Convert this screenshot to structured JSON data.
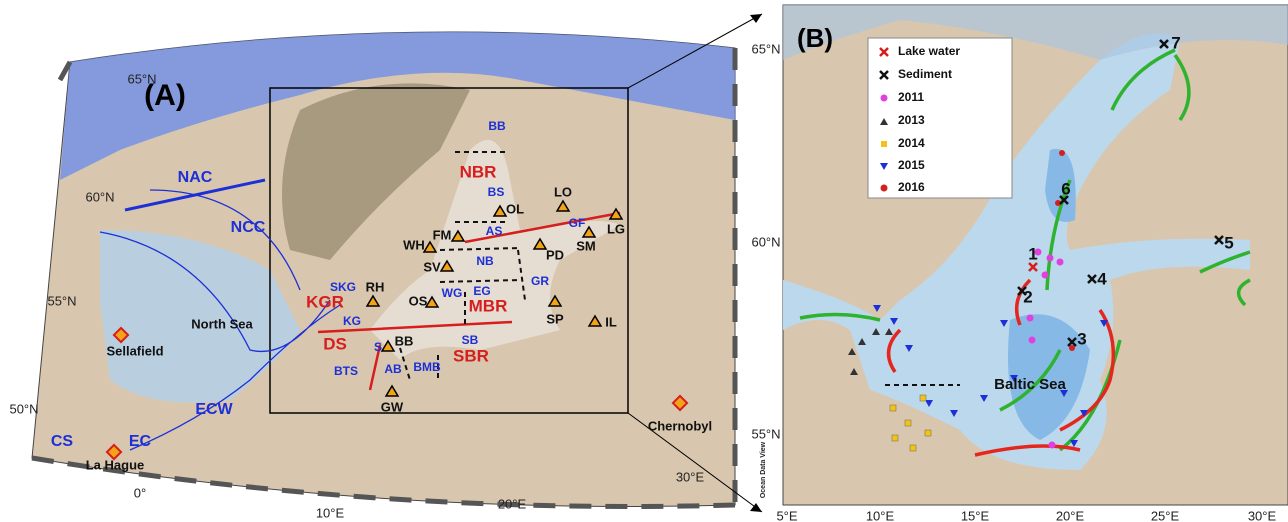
{
  "panel_a": {
    "label": "(A)",
    "lat_labels": [
      "65°N",
      "60°N",
      "55°N",
      "50°N"
    ],
    "lon_labels": [
      "0°",
      "10°E",
      "20°E",
      "30°E"
    ],
    "currents": [
      "NAC",
      "NCC",
      "ECW",
      "EC",
      "CS"
    ],
    "sea": "North Sea",
    "sites": [
      "Sellafield",
      "La Hague",
      "Chernobyl"
    ],
    "regions": [
      "BB",
      "NBR",
      "BS",
      "AS",
      "GF",
      "NB",
      "EG",
      "GR",
      "WG",
      "MBR",
      "SKG",
      "KGR",
      "KG",
      "DS",
      "S",
      "AB",
      "BMB",
      "SBR",
      "SB",
      "BTS"
    ],
    "stations": [
      "OL",
      "LO",
      "FM",
      "LG",
      "SM",
      "WH",
      "PD",
      "SV",
      "RH",
      "OS",
      "SP",
      "IL",
      "BB",
      "GW"
    ]
  },
  "panel_b": {
    "label": "(B)",
    "legend": [
      "Lake water",
      "Sediment",
      "2011",
      "2013",
      "2014",
      "2015",
      "2016"
    ],
    "lat_labels": [
      "65°N",
      "60°N",
      "55°N"
    ],
    "lon_labels": [
      "5°E",
      "10°E",
      "15°E",
      "20°E",
      "25°E",
      "30°E"
    ],
    "sites": [
      "1",
      "2",
      "3",
      "4",
      "5",
      "6",
      "7"
    ],
    "sea": "Baltic Sea",
    "credit": "Ocean Data View"
  }
}
